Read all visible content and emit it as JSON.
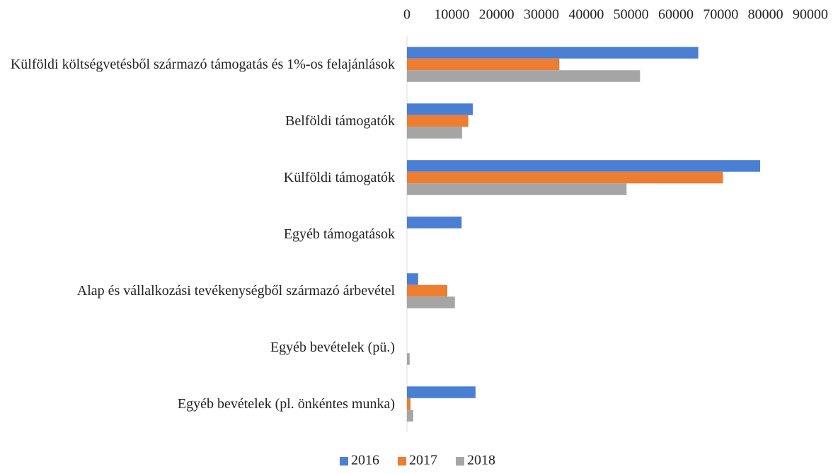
{
  "chart_data": {
    "type": "barh",
    "categories": [
      "Külföldi költségvetésből származó támogatás és 1%-os felajánlások",
      "Belföldi támogatók",
      "Külföldi támogatók",
      "Egyéb támogatások",
      "Alap és vállalkozási tevékenységből származó árbevétel",
      "Egyéb bevételek (pü.)",
      "Egyéb bevételek (pl. önkéntes munka)"
    ],
    "series": [
      {
        "name": "2016",
        "color": "#4a7fd4",
        "values": [
          65000,
          14700,
          78800,
          12200,
          2500,
          0,
          15300
        ]
      },
      {
        "name": "2017",
        "color": "#ed7d31",
        "values": [
          34000,
          13700,
          70500,
          0,
          9000,
          0,
          800
        ]
      },
      {
        "name": "2018",
        "color": "#a5a5a5",
        "values": [
          52000,
          12300,
          49000,
          0,
          10700,
          600,
          1400
        ]
      }
    ],
    "xlim": [
      0,
      90000
    ],
    "xticks": [
      0,
      10000,
      20000,
      30000,
      40000,
      50000,
      60000,
      70000,
      80000,
      90000
    ],
    "legend": "bottom"
  }
}
